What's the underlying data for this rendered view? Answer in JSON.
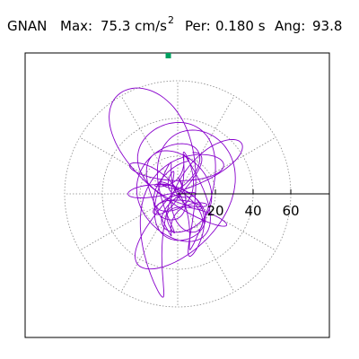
{
  "header": {
    "station": "GNAN",
    "max_label": "Max:",
    "max_value": "75.3 cm/s",
    "max_exponent": "2",
    "per_label": "Per:",
    "per_value": "0.180 s",
    "ang_label": "Ang:",
    "ang_value": "93.8"
  },
  "colors": {
    "trace": "#8800cc",
    "marker": "#00a060",
    "grid": "#888888",
    "axis": "#000000"
  },
  "chart_data": {
    "type": "polar-particle-motion",
    "radial_ticks": [
      20,
      40,
      60
    ],
    "radial_tick_labels": [
      "20",
      "40",
      "60"
    ],
    "rmax": 75.3,
    "angular_gridlines_deg": [
      0,
      30,
      60,
      90,
      120,
      150,
      180,
      210,
      240,
      270,
      300,
      330
    ],
    "grid": true,
    "max_amplitude": 75.3,
    "max_angle_deg": 93.8,
    "marker": {
      "angle_deg": 93.8,
      "radius": 75.3
    }
  }
}
